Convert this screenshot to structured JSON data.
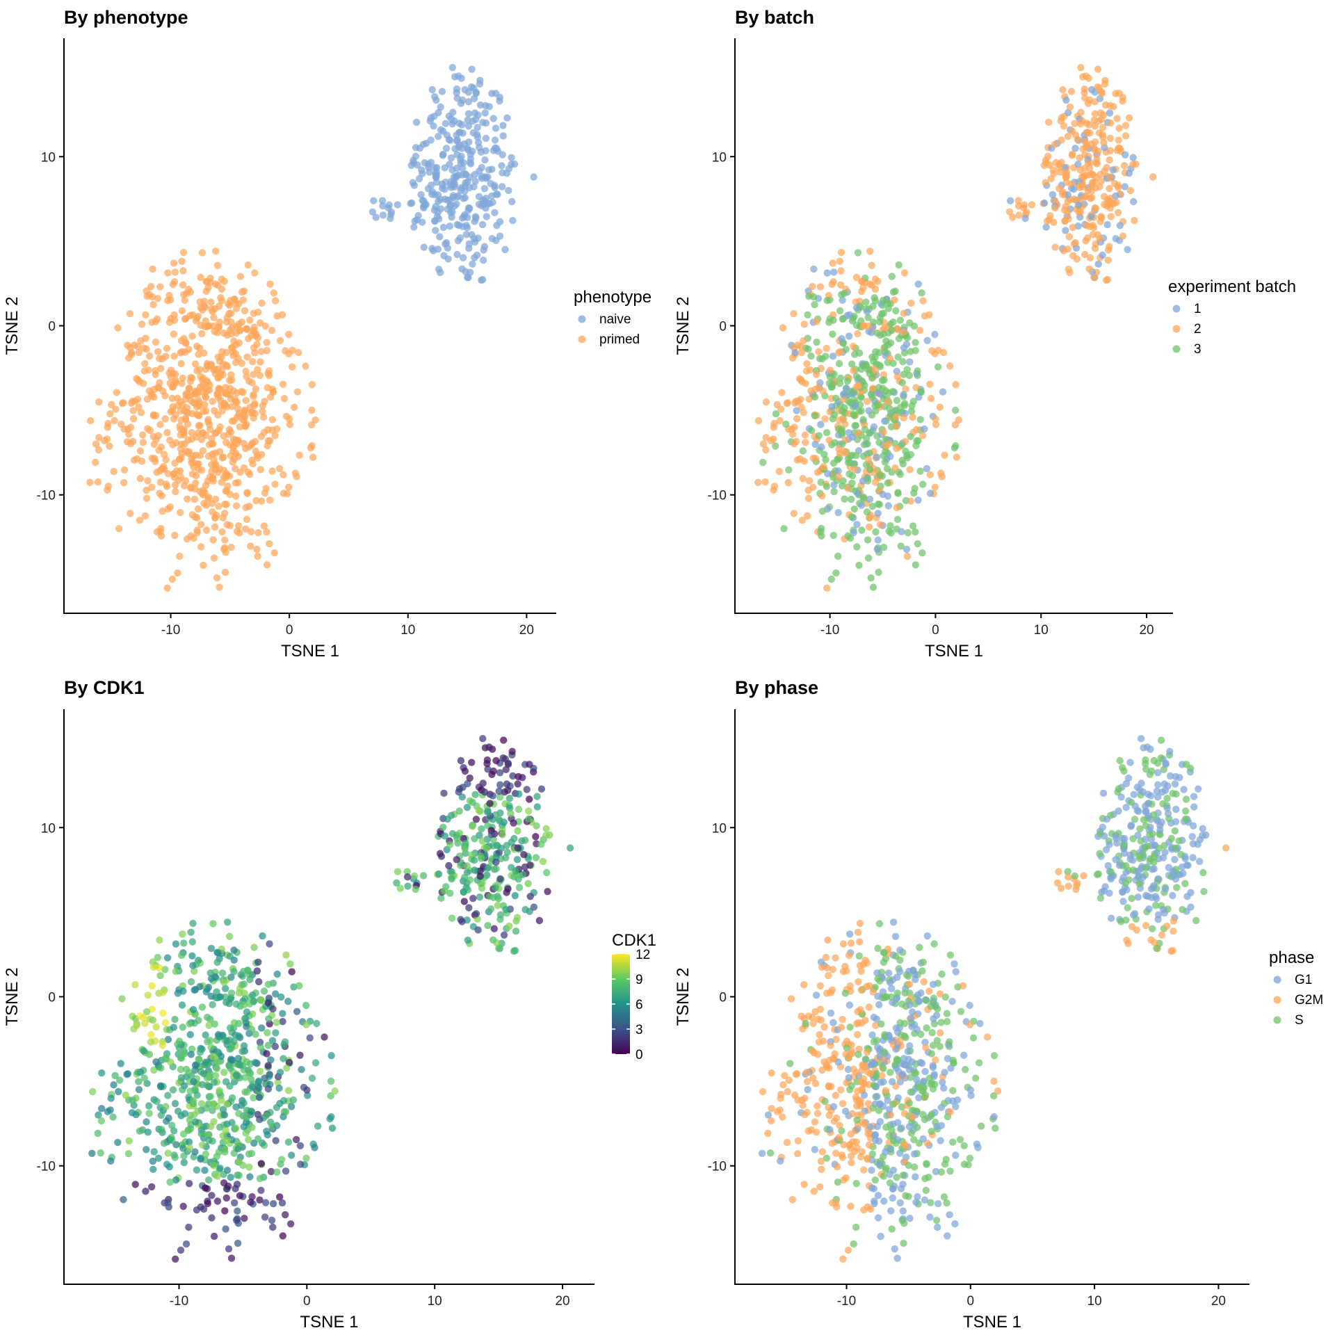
{
  "colors": {
    "blue": "#7ea6d8",
    "orange": "#fda65a",
    "green": "#6fc46a"
  },
  "colorbar_palette": [
    "#440154",
    "#3b528b",
    "#21918c",
    "#5ec962",
    "#fde725"
  ],
  "chart_data": [
    {
      "type": "scatter",
      "title": "By phenotype",
      "xlabel": "TSNE 1",
      "ylabel": "TSNE 2",
      "xlim": [
        -19,
        22.5
      ],
      "ylim": [
        -17,
        17
      ],
      "xticks": [
        -10,
        0,
        10,
        20
      ],
      "yticks": [
        -10,
        0,
        10
      ],
      "xtick_labels": [
        "-10",
        "0",
        "10",
        "20"
      ],
      "ytick_labels": [
        "-10",
        "0",
        "10"
      ],
      "grid": false,
      "color_mode": "categorical",
      "legend": {
        "title": "phenotype",
        "placement": "right"
      },
      "series": [
        {
          "name": "naive",
          "color": "blue",
          "distribution": "naive_cluster"
        },
        {
          "name": "primed",
          "color": "orange",
          "distribution": "primed_cluster"
        }
      ]
    },
    {
      "type": "scatter",
      "title": "By batch",
      "xlabel": "TSNE 1",
      "ylabel": "TSNE 2",
      "xlim": [
        -19,
        22.5
      ],
      "ylim": [
        -17,
        17
      ],
      "xticks": [
        -10,
        0,
        10,
        20
      ],
      "yticks": [
        -10,
        0,
        10
      ],
      "xtick_labels": [
        "-10",
        "0",
        "10",
        "20"
      ],
      "ytick_labels": [
        "-10",
        "0",
        "10"
      ],
      "grid": false,
      "color_mode": "categorical",
      "legend": {
        "title": "experiment batch",
        "placement": "right"
      },
      "series": [
        {
          "name": "1",
          "color": "blue",
          "distribution": "mixed"
        },
        {
          "name": "2",
          "color": "orange",
          "distribution": "mixed"
        },
        {
          "name": "3",
          "color": "green",
          "distribution": "primed_central"
        }
      ]
    },
    {
      "type": "scatter",
      "title": "By CDK1",
      "xlabel": "TSNE 1",
      "ylabel": "TSNE 2",
      "xlim": [
        -19,
        22.5
      ],
      "ylim": [
        -17,
        17
      ],
      "xticks": [
        -10,
        0,
        10,
        20
      ],
      "yticks": [
        -10,
        0,
        10
      ],
      "xtick_labels": [
        "-10",
        "0",
        "10",
        "20"
      ],
      "ytick_labels": [
        "-10",
        "0",
        "10"
      ],
      "grid": false,
      "color_mode": "continuous",
      "legend": {
        "title": "CDK1",
        "placement": "right",
        "range": [
          0,
          12
        ],
        "ticks": [
          "12",
          "9",
          "6",
          "3",
          "0"
        ]
      }
    },
    {
      "type": "scatter",
      "title": "By phase",
      "xlabel": "TSNE 1",
      "ylabel": "TSNE 2",
      "xlim": [
        -19,
        22.5
      ],
      "ylim": [
        -17,
        17
      ],
      "xticks": [
        -10,
        0,
        10,
        20
      ],
      "yticks": [
        -10,
        0,
        10
      ],
      "xtick_labels": [
        "-10",
        "0",
        "10",
        "20"
      ],
      "ytick_labels": [
        "-10",
        "0",
        "10"
      ],
      "grid": false,
      "color_mode": "categorical",
      "legend": {
        "title": "phase",
        "placement": "right"
      },
      "series": [
        {
          "name": "G1",
          "color": "blue",
          "distribution": "mixed"
        },
        {
          "name": "G2M",
          "color": "orange",
          "distribution": "primed_left_and_naive_bottom"
        },
        {
          "name": "S",
          "color": "green",
          "distribution": "mixed"
        }
      ]
    }
  ],
  "clusters": {
    "naive": {
      "center_x": 14.3,
      "center_y": 8.6,
      "x_range": [
        7,
        20.6
      ],
      "y_range": [
        2,
        15.6
      ],
      "approx_points": 320
    },
    "primed": {
      "center_x": -7.5,
      "center_y": -4.8,
      "x_range": [
        -17,
        2
      ],
      "y_range": [
        -16,
        4.8
      ],
      "approx_points": 760
    }
  }
}
